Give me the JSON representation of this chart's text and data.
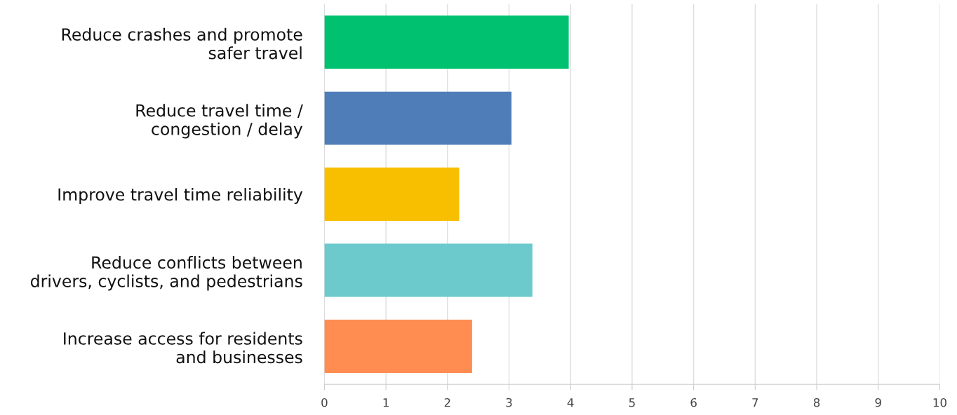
{
  "chart_data": {
    "type": "bar",
    "orientation": "horizontal",
    "categories": [
      "Reduce crashes and promote\nsafer travel",
      "Reduce travel time /\ncongestion / delay",
      "Improve travel time reliability",
      "Reduce conflicts between\ndrivers, cyclists, and pedestrians",
      "Increase access for residents\nand businesses"
    ],
    "values": [
      3.97,
      3.04,
      2.19,
      3.38,
      2.4
    ],
    "colors": [
      "#00c170",
      "#4f7db7",
      "#f8be00",
      "#6ccacd",
      "#ff8d52"
    ],
    "xlim": [
      0,
      10
    ],
    "xticks": [
      0,
      1,
      2,
      3,
      4,
      5,
      6,
      7,
      8,
      9,
      10
    ],
    "grid": "x"
  }
}
